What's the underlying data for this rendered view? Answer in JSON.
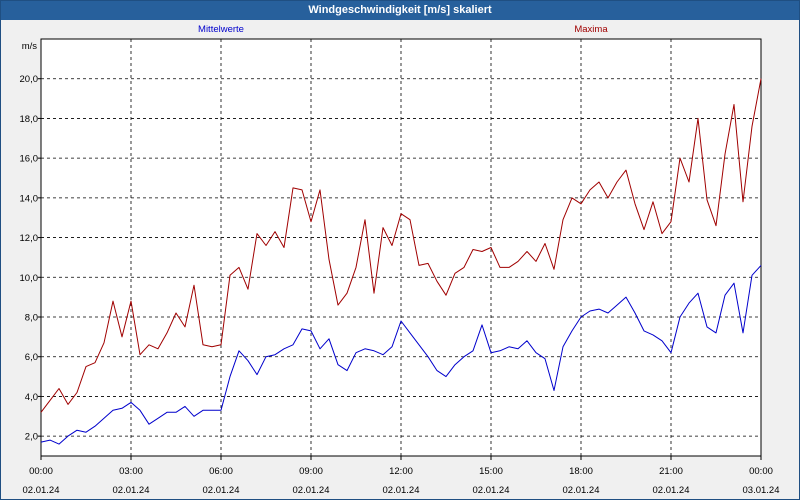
{
  "window": {
    "title": "Windgeschwindigkeit [m/s] skaliert"
  },
  "chart_data": {
    "type": "line",
    "title": "Windgeschwindigkeit [m/s] skaliert",
    "ylabel": "m/s",
    "xlabel": "",
    "ylim": [
      1.0,
      22.0
    ],
    "xlim": [
      0,
      24
    ],
    "grid": true,
    "legend": "top",
    "y_ticks": [
      2.0,
      4.0,
      6.0,
      8.0,
      10.0,
      12.0,
      14.0,
      16.0,
      18.0,
      20.0
    ],
    "y_tick_labels": [
      "2,0",
      "4,0",
      "6,0",
      "8,0",
      "10,0",
      "12,0",
      "14,0",
      "16,0",
      "18,0",
      "20,0"
    ],
    "x_ticks": [
      0,
      3,
      6,
      9,
      12,
      15,
      18,
      21,
      24
    ],
    "x_tick_labels": [
      [
        "00:00",
        "02.01.24"
      ],
      [
        "03:00",
        "02.01.24"
      ],
      [
        "06:00",
        "02.01.24"
      ],
      [
        "09:00",
        "02.01.24"
      ],
      [
        "12:00",
        "02.01.24"
      ],
      [
        "15:00",
        "02.01.24"
      ],
      [
        "18:00",
        "02.01.24"
      ],
      [
        "21:00",
        "02.01.24"
      ],
      [
        "00:00",
        "03.01.24"
      ]
    ],
    "series": [
      {
        "name": "Mittelwerte",
        "color": "#0000cc",
        "x": [
          0,
          0.3,
          0.6,
          0.9,
          1.2,
          1.5,
          1.8,
          2.1,
          2.4,
          2.7,
          3,
          3.3,
          3.6,
          3.9,
          4.2,
          4.5,
          4.8,
          5.1,
          5.4,
          5.7,
          6,
          6.3,
          6.6,
          6.9,
          7.2,
          7.5,
          7.8,
          8.1,
          8.4,
          8.7,
          9,
          9.3,
          9.6,
          9.9,
          10.2,
          10.5,
          10.8,
          11.1,
          11.4,
          11.7,
          12,
          12.3,
          12.6,
          12.9,
          13.2,
          13.5,
          13.8,
          14.1,
          14.4,
          14.7,
          15,
          15.3,
          15.6,
          15.9,
          16.2,
          16.5,
          16.8,
          17.1,
          17.4,
          17.7,
          18,
          18.3,
          18.6,
          18.9,
          19.2,
          19.5,
          19.8,
          20.1,
          20.4,
          20.7,
          21,
          21.3,
          21.6,
          21.9,
          22.2,
          22.5,
          22.8,
          23.1,
          23.4,
          23.7,
          24
        ],
        "y": [
          1.7,
          1.8,
          1.6,
          2.0,
          2.3,
          2.2,
          2.5,
          2.9,
          3.3,
          3.4,
          3.7,
          3.3,
          2.6,
          2.9,
          3.2,
          3.2,
          3.5,
          3.0,
          3.3,
          3.3,
          3.3,
          5.0,
          6.3,
          5.8,
          5.1,
          6.0,
          6.1,
          6.4,
          6.6,
          7.4,
          7.3,
          6.4,
          6.9,
          5.6,
          5.3,
          6.2,
          6.4,
          6.3,
          6.1,
          6.5,
          7.8,
          7.2,
          6.6,
          6.0,
          5.3,
          5.0,
          5.6,
          6.0,
          6.3,
          7.6,
          6.2,
          6.3,
          6.5,
          6.4,
          6.8,
          6.2,
          5.9,
          4.3,
          6.5,
          7.3,
          8.0,
          8.3,
          8.4,
          8.2,
          8.6,
          9.0,
          8.2,
          7.3,
          7.1,
          6.8,
          6.2,
          8.0,
          8.7,
          9.2,
          7.5,
          7.2,
          9.1,
          9.7,
          7.2,
          10.1,
          10.6
        ]
      },
      {
        "name": "Maxima",
        "color": "#a00000",
        "x": [
          0,
          0.3,
          0.6,
          0.9,
          1.2,
          1.5,
          1.8,
          2.1,
          2.4,
          2.7,
          3,
          3.3,
          3.6,
          3.9,
          4.2,
          4.5,
          4.8,
          5.1,
          5.4,
          5.7,
          6,
          6.3,
          6.6,
          6.9,
          7.2,
          7.5,
          7.8,
          8.1,
          8.4,
          8.7,
          9,
          9.3,
          9.6,
          9.9,
          10.2,
          10.5,
          10.8,
          11.1,
          11.4,
          11.7,
          12,
          12.3,
          12.6,
          12.9,
          13.2,
          13.5,
          13.8,
          14.1,
          14.4,
          14.7,
          15,
          15.3,
          15.6,
          15.9,
          16.2,
          16.5,
          16.8,
          17.1,
          17.4,
          17.7,
          18,
          18.3,
          18.6,
          18.9,
          19.2,
          19.5,
          19.8,
          20.1,
          20.4,
          20.7,
          21,
          21.3,
          21.6,
          21.9,
          22.2,
          22.5,
          22.8,
          23.1,
          23.4,
          23.7,
          24
        ],
        "y": [
          3.2,
          3.8,
          4.4,
          3.6,
          4.2,
          5.5,
          5.7,
          6.7,
          8.8,
          7.0,
          8.8,
          6.1,
          6.6,
          6.4,
          7.2,
          8.2,
          7.5,
          9.6,
          6.6,
          6.5,
          6.6,
          10.1,
          10.5,
          9.4,
          12.2,
          11.6,
          12.3,
          11.5,
          14.5,
          14.4,
          12.8,
          14.4,
          10.9,
          8.6,
          9.2,
          10.5,
          12.9,
          9.2,
          12.5,
          11.6,
          13.2,
          12.9,
          10.6,
          10.7,
          9.8,
          9.1,
          10.2,
          10.5,
          11.4,
          11.3,
          11.5,
          10.5,
          10.5,
          10.8,
          11.3,
          10.8,
          11.7,
          10.4,
          12.9,
          14.0,
          13.7,
          14.4,
          14.8,
          14.0,
          14.8,
          15.4,
          13.7,
          12.4,
          13.8,
          12.2,
          12.8,
          16.0,
          14.8,
          18.0,
          13.9,
          12.6,
          16.2,
          18.7,
          13.8,
          17.6,
          20.0
        ]
      }
    ]
  }
}
